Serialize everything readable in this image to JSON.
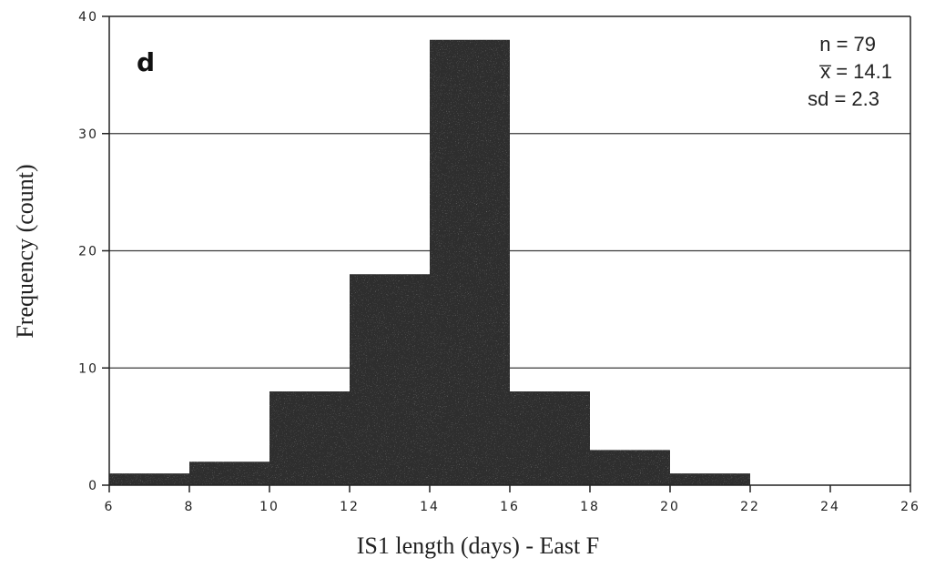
{
  "chart_data": {
    "type": "bar",
    "panel_label": "d",
    "xlabel": "IS1 length (days) - East F",
    "ylabel": "Frequency (count)",
    "xlim": [
      6,
      26
    ],
    "ylim": [
      0,
      40
    ],
    "x_ticks": [
      6,
      8,
      10,
      12,
      14,
      16,
      18,
      20,
      22,
      24,
      26
    ],
    "y_ticks": [
      0,
      10,
      20,
      30,
      40
    ],
    "grid": true,
    "bins": [
      {
        "start": 6,
        "end": 8,
        "value": 1
      },
      {
        "start": 8,
        "end": 10,
        "value": 2
      },
      {
        "start": 10,
        "end": 12,
        "value": 8
      },
      {
        "start": 12,
        "end": 14,
        "value": 18
      },
      {
        "start": 14,
        "end": 16,
        "value": 38
      },
      {
        "start": 16,
        "end": 18,
        "value": 8
      },
      {
        "start": 18,
        "end": 20,
        "value": 3
      },
      {
        "start": 20,
        "end": 22,
        "value": 1
      }
    ],
    "annotations": {
      "n": "n = 79",
      "mean": "x̅ = 14.1",
      "sd": "sd = 2.3"
    },
    "colors": {
      "bar": "#2e2e2e",
      "grid": "#3a3a3a",
      "axis": "#222222"
    }
  }
}
